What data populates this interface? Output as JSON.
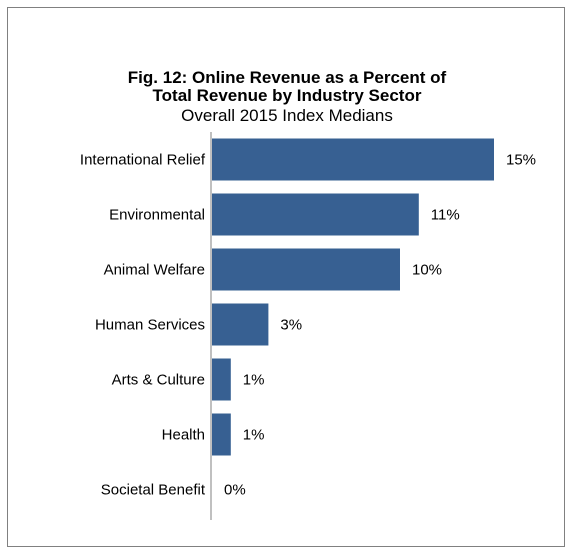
{
  "chart_data": {
    "type": "bar",
    "orientation": "horizontal",
    "title": "Fig. 12: Online Revenue as a Percent of",
    "title_line2": "Total Revenue by Industry Sector",
    "subtitle": "Overall 2015 Index Medians",
    "categories": [
      "International Relief",
      "Environmental",
      "Animal Welfare",
      "Human Services",
      "Arts & Culture",
      "Health",
      "Societal Benefit"
    ],
    "values": [
      15,
      11,
      10,
      3,
      1,
      1,
      0
    ],
    "value_labels": [
      "15%",
      "11%",
      "10%",
      "3%",
      "1%",
      "1%",
      "0%"
    ],
    "unit": "%",
    "xlim": [
      0,
      16
    ],
    "bar_color": "#376092",
    "grid": false,
    "legend": "none"
  }
}
